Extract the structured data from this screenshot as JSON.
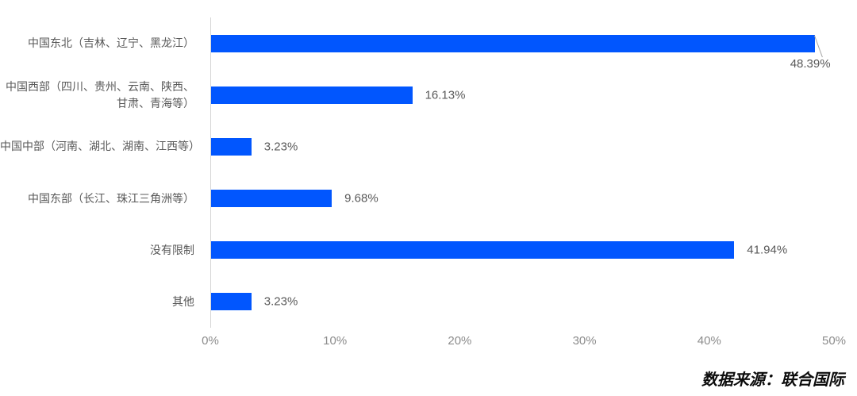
{
  "chart_data": {
    "type": "bar",
    "orientation": "horizontal",
    "title": "",
    "xlabel": "",
    "ylabel": "",
    "categories": [
      "中国东北（吉林、辽宁、黑龙江）",
      "中国西部（四川、贵州、云南、陕西、甘肃、青海等）",
      "中国中部（河南、湖北、湖南、江西等）",
      "中国东部（长江、珠江三角洲等）",
      "没有限制",
      "其他"
    ],
    "values": [
      48.39,
      16.13,
      3.23,
      9.68,
      41.94,
      3.23
    ],
    "value_labels": [
      "48.39%",
      "16.13%",
      "3.23%",
      "9.68%",
      "41.94%",
      "3.23%"
    ],
    "x_ticks": [
      "0%",
      "10%",
      "20%",
      "30%",
      "40%",
      "50%"
    ],
    "x_tick_values": [
      0,
      10,
      20,
      30,
      40,
      50
    ],
    "xlim": [
      0,
      50
    ],
    "grid": false,
    "legend": "none",
    "bar_color": "#0156fe",
    "axis_line_color": "#d6d6d6",
    "label_color": "#595959",
    "tick_color": "#8c8c8c"
  },
  "source": {
    "text": "数据来源：联合国际"
  }
}
